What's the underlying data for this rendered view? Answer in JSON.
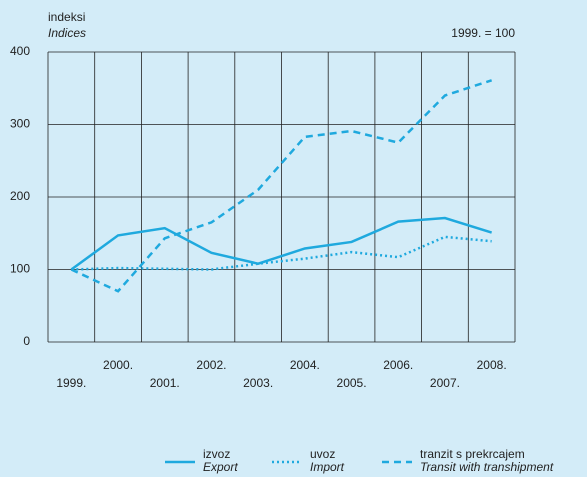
{
  "chart_data": {
    "type": "line",
    "y_label": "indeksi",
    "y_label_en": "Indices",
    "note": "1999. = 100",
    "categories": [
      "1999.",
      "2000.",
      "2001.",
      "2002.",
      "2003.",
      "2004.",
      "2005.",
      "2006.",
      "2007.",
      "2008."
    ],
    "series": [
      {
        "name": "izvoz",
        "name_en": "Export",
        "color": "#1fa9de",
        "style": "solid",
        "values": [
          100,
          147,
          157,
          123,
          108,
          129,
          138,
          166,
          171,
          151
        ]
      },
      {
        "name": "uvoz",
        "name_en": "Import",
        "color": "#1fa9de",
        "style": "dotted",
        "values": [
          100,
          102,
          101,
          100,
          108,
          115,
          124,
          117,
          145,
          139
        ]
      },
      {
        "name": "tranzit s prekrcajem",
        "name_en": "Transit with transhipment",
        "color": "#1fa9de",
        "style": "dashed",
        "values": [
          100,
          70,
          143,
          165,
          210,
          283,
          291,
          275,
          340,
          361
        ]
      }
    ],
    "ylim": [
      0,
      400
    ],
    "yticks": [
      0,
      100,
      200,
      300,
      400
    ],
    "grid": true
  }
}
